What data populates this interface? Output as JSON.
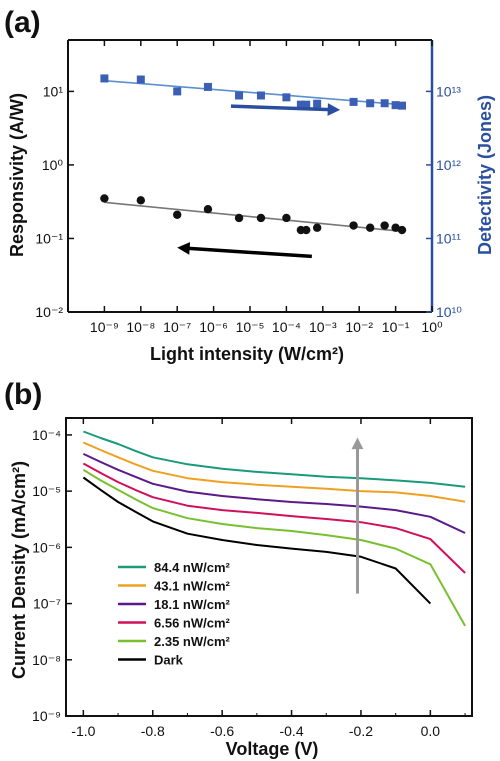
{
  "chart_data": [
    {
      "panel": "(a)",
      "type": "scatter",
      "xlabel": "Light intensity (W/cm²)",
      "ylabel_left": "Responsivity (A/W)",
      "ylabel_right": "Detectivity (Jones)",
      "x_scale": "log",
      "y_scale": "log",
      "xlim": [
        1e-10,
        1
      ],
      "ylim": [
        0.01,
        50
      ],
      "y2lim": [
        10000000000.0,
        50000000000000.0
      ],
      "x_ticks": [
        "10⁻⁹",
        "10⁻⁸",
        "10⁻⁷",
        "10⁻⁶",
        "10⁻⁵",
        "10⁻⁴",
        "10⁻³",
        "10⁻²",
        "10⁻¹",
        "10⁰"
      ],
      "y_ticks": [
        "10⁻²",
        "10⁻¹",
        "10⁰",
        "10¹"
      ],
      "y2_ticks": [
        "10¹⁰",
        "10¹¹",
        "10¹²",
        "10¹³"
      ],
      "series": [
        {
          "name": "Detectivity",
          "marker": "square",
          "color": "#3a5fb5",
          "fit_color": "#5b8fd0",
          "axis": "right",
          "x": [
            1e-09,
            1e-08,
            1e-07,
            7e-07,
            5e-06,
            2e-05,
            0.0001,
            0.00025,
            0.00035,
            0.0007,
            0.007,
            0.02,
            0.05,
            0.1,
            0.15
          ],
          "values": [
            15000000000000.0,
            14500000000000.0,
            10000000000000.0,
            11500000000000.0,
            8800000000000.0,
            8800000000000.0,
            8300000000000.0,
            6600000000000.0,
            6600000000000.0,
            6800000000000.0,
            7200000000000.0,
            6900000000000.0,
            6900000000000.0,
            6500000000000.0,
            6400000000000.0
          ],
          "fit": [
            [
              1e-09,
              14000000000000.0
            ],
            [
              0.15,
              6600000000000.0
            ]
          ]
        },
        {
          "name": "Responsivity",
          "marker": "circle",
          "color": "#111111",
          "fit_color": "#777777",
          "axis": "left",
          "x": [
            1e-09,
            1e-08,
            1e-07,
            7e-07,
            5e-06,
            2e-05,
            0.0001,
            0.00025,
            0.00035,
            0.0007,
            0.007,
            0.02,
            0.05,
            0.1,
            0.15
          ],
          "values": [
            0.35,
            0.33,
            0.21,
            0.25,
            0.19,
            0.19,
            0.19,
            0.13,
            0.13,
            0.14,
            0.15,
            0.14,
            0.15,
            0.14,
            0.13
          ],
          "fit": [
            [
              1e-09,
              0.31
            ],
            [
              0.15,
              0.125
            ]
          ]
        }
      ],
      "arrows": [
        {
          "color": "#2b4fa0",
          "from": [
            3e-06,
            6.3
          ],
          "to": [
            0.003,
            5.6
          ]
        },
        {
          "color": "#000000",
          "from": [
            0.0005,
            0.057
          ],
          "to": [
            1e-07,
            0.075
          ]
        }
      ]
    },
    {
      "panel": "(b)",
      "type": "line",
      "xlabel": "Voltage (V)",
      "ylabel": "Current Density (mA/cm²)",
      "y_scale": "log",
      "xlim": [
        -1.05,
        0.12
      ],
      "ylim": [
        1e-09,
        0.0002
      ],
      "x_ticks": [
        "-1.0",
        "-0.8",
        "-0.6",
        "-0.4",
        "-0.2",
        "0.0"
      ],
      "y_ticks": [
        "10⁻⁹",
        "10⁻⁸",
        "10⁻⁷",
        "10⁻⁶",
        "10⁻⁵",
        "10⁻⁴"
      ],
      "legend": "left",
      "series": [
        {
          "name": "84.4 nW/cm²",
          "color": "#1a9a7a",
          "x": [
            -1.0,
            -0.95,
            -0.9,
            -0.85,
            -0.8,
            -0.7,
            -0.6,
            -0.5,
            -0.4,
            -0.3,
            -0.2,
            -0.1,
            0.0,
            0.1
          ],
          "values": [
            0.000115,
            8.8e-05,
            6.9e-05,
            5.2e-05,
            4e-05,
            3e-05,
            2.5e-05,
            2.2e-05,
            2e-05,
            1.8e-05,
            1.7e-05,
            1.55e-05,
            1.4e-05,
            1.2e-05
          ]
        },
        {
          "name": "43.1 nW/cm²",
          "color": "#f0a020",
          "x": [
            -1.0,
            -0.95,
            -0.9,
            -0.85,
            -0.8,
            -0.7,
            -0.6,
            -0.5,
            -0.4,
            -0.3,
            -0.2,
            -0.1,
            0.0,
            0.1
          ],
          "values": [
            7.3e-05,
            5.4e-05,
            4e-05,
            3e-05,
            2.3e-05,
            1.7e-05,
            1.45e-05,
            1.3e-05,
            1.2e-05,
            1.1e-05,
            1e-05,
            9.5e-06,
            8.2e-06,
            6.5e-06
          ]
        },
        {
          "name": "18.1 nW/cm²",
          "color": "#5a1a8a",
          "x": [
            -1.0,
            -0.95,
            -0.9,
            -0.85,
            -0.8,
            -0.7,
            -0.6,
            -0.5,
            -0.4,
            -0.3,
            -0.2,
            -0.1,
            0.0,
            0.1
          ],
          "values": [
            4.6e-05,
            3.3e-05,
            2.4e-05,
            1.8e-05,
            1.35e-05,
            9.8e-06,
            8.2e-06,
            7.2e-06,
            6.4e-06,
            5.9e-06,
            5.3e-06,
            4.6e-06,
            3.5e-06,
            1.8e-06
          ]
        },
        {
          "name": "6.56 nW/cm²",
          "color": "#d0105a",
          "x": [
            -1.0,
            -0.95,
            -0.9,
            -0.85,
            -0.8,
            -0.7,
            -0.6,
            -0.5,
            -0.4,
            -0.3,
            -0.2,
            -0.1,
            0.0,
            0.1
          ],
          "values": [
            3.1e-05,
            2.1e-05,
            1.45e-05,
            1.05e-05,
            7.8e-06,
            5.5e-06,
            4.6e-06,
            4.1e-06,
            3.6e-06,
            3.2e-06,
            2.8e-06,
            2.2e-06,
            1.4e-06,
            3.5e-07
          ]
        },
        {
          "name": "2.35 nW/cm²",
          "color": "#78c030",
          "x": [
            -1.0,
            -0.95,
            -0.9,
            -0.85,
            -0.8,
            -0.7,
            -0.6,
            -0.5,
            -0.4,
            -0.3,
            -0.2,
            -0.1,
            0.0,
            0.1
          ],
          "values": [
            2.4e-05,
            1.55e-05,
            1.05e-05,
            7.2e-06,
            5e-06,
            3.3e-06,
            2.6e-06,
            2.2e-06,
            1.95e-06,
            1.65e-06,
            1.35e-06,
            9.5e-07,
            5e-07,
            4e-08
          ]
        },
        {
          "name": "Dark",
          "color": "#000000",
          "x": [
            -1.0,
            -0.95,
            -0.9,
            -0.85,
            -0.8,
            -0.7,
            -0.6,
            -0.5,
            -0.4,
            -0.3,
            -0.2,
            -0.1,
            0.0
          ],
          "values": [
            1.75e-05,
            1.05e-05,
            6.4e-06,
            4.3e-06,
            2.9e-06,
            1.75e-06,
            1.35e-06,
            1.1e-06,
            9.5e-07,
            8.3e-07,
            6.8e-07,
            4.2e-07,
            1e-07
          ]
        }
      ],
      "arrows": [
        {
          "color": "#999999",
          "from": [
            -0.21,
            1.5e-07
          ],
          "to": [
            -0.21,
            9e-05
          ]
        }
      ]
    }
  ]
}
